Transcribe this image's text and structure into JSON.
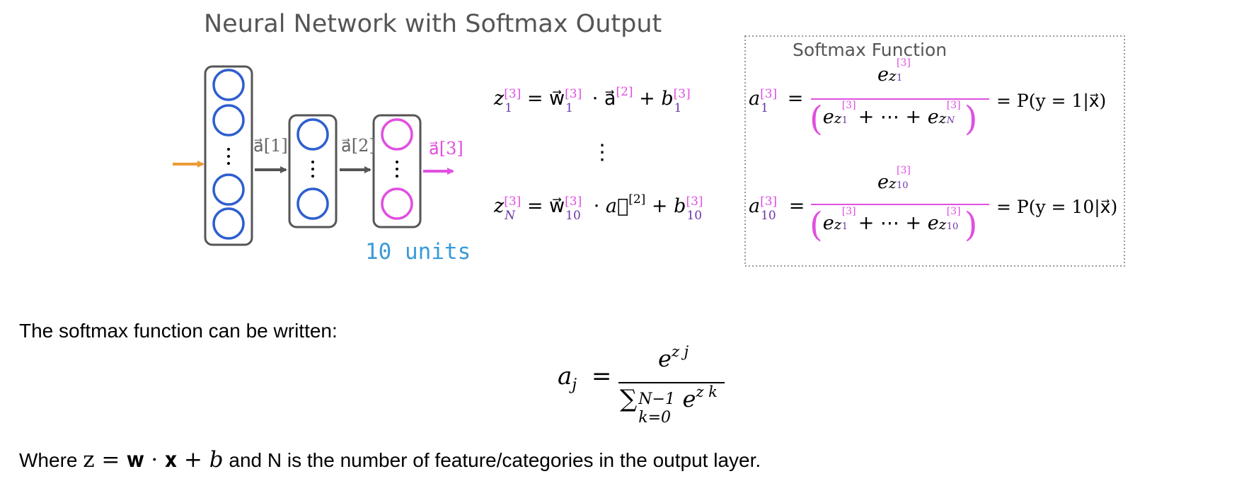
{
  "diagram": {
    "title": "Neural Network with Softmax Output",
    "arrow_labels": {
      "a1": "a⃗[1]",
      "a2": "a⃗[2]",
      "a3": "a⃗[3]"
    },
    "output_units_label": "10 units",
    "vertical_dots": "⋮",
    "equations": {
      "z_first": {
        "lhs": "z",
        "lhs_sup": "[3]",
        "lhs_sub": "1",
        "eq": "=",
        "w": "w⃗",
        "w_sup": "[3]",
        "w_sub": "1",
        "dot": "·",
        "a": "a⃗",
        "a_sup": "[2]",
        "plus": "+",
        "b": "b",
        "b_sup": "[3]",
        "b_sub": "1"
      },
      "z_last": {
        "lhs": "z",
        "lhs_sup": "[3]",
        "lhs_sub": "N",
        "eq": "=",
        "w": "w⃗",
        "w_sup": "[3]",
        "w_sub": "10",
        "dot": "·",
        "a": "a⃗",
        "a_sup": "[2]",
        "plus": "+",
        "b": "b",
        "b_sup": "[3]",
        "b_sub": "10"
      }
    },
    "softmax_box": {
      "title": "Softmax Function",
      "row1": {
        "lhs": "a",
        "lhs_sup": "[3]",
        "lhs_sub": "1",
        "eq": "=",
        "num_base": "e",
        "num_z": "z",
        "num_sub": "1",
        "num_sup": "[3]",
        "den_left": "(",
        "den_e1": "e",
        "den_z1": "z",
        "den_sub1": "1",
        "den_sup1": "[3]",
        "den_mid": "+ ⋯ + ",
        "den_e2": "e",
        "den_z2": "z",
        "den_sub2": "N",
        "den_sup2": "[3]",
        "den_right": ")",
        "rhs": "= P(y = 1|x⃗)"
      },
      "row2": {
        "lhs": "a",
        "lhs_sup": "[3]",
        "lhs_sub": "10",
        "eq": "=",
        "num_base": "e",
        "num_z": "z",
        "num_sub": "10",
        "num_sup": "[3]",
        "den_left": "(",
        "den_e1": "e",
        "den_z1": "z",
        "den_sub1": "1",
        "den_sup1": "[3]",
        "den_mid": "+ ⋯ + ",
        "den_e2": "e",
        "den_z2": "z",
        "den_sub2": "10",
        "den_sup2": "[3]",
        "den_right": ")",
        "rhs": "= P(y = 10|x⃗)"
      }
    }
  },
  "text": {
    "intro": "The softmax function can be written:",
    "formula": {
      "lhs": "a",
      "lhs_sub": "j",
      "eq": "=",
      "num": "e",
      "num_sup": "z j",
      "den_sum": "∑",
      "den_sup": "N−1",
      "den_sub": "k=0",
      "den_e": "e",
      "den_e_sup": "z k"
    },
    "where": {
      "prefix": "Where ",
      "math": "z = 𝐰 · 𝐱 + 𝑏",
      "suffix": " and N is the number of feature/categories in the output layer."
    }
  },
  "colors": {
    "input_arrow": "#ee9a33",
    "hidden_neuron": "#2e5fcf",
    "output_neuron": "#e04fe0",
    "layer_box": "#555555",
    "units_text": "#3a9ad9"
  }
}
